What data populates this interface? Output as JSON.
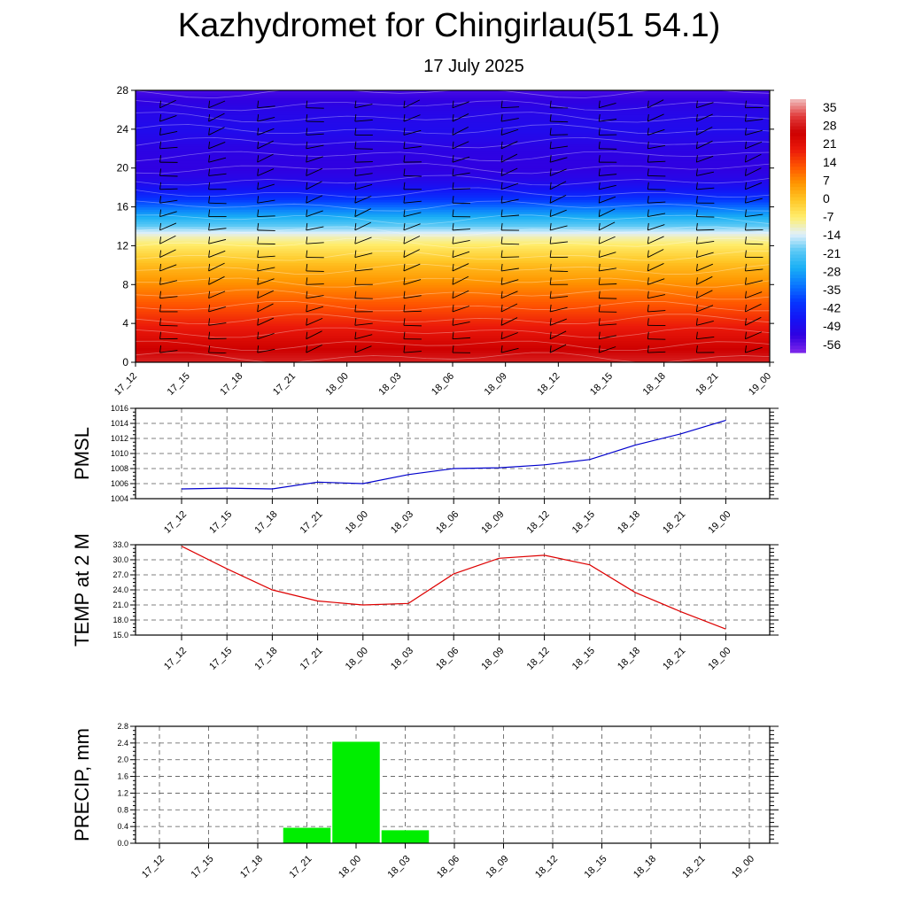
{
  "title": "Kazhydromet for Chingirlau(51 54.1)",
  "subtitle": "17 July 2025",
  "time_labels": [
    "17_12",
    "17_15",
    "17_18",
    "17_21",
    "18_00",
    "18_03",
    "18_06",
    "18_09",
    "18_12",
    "18_15",
    "18_18",
    "18_21",
    "19_00"
  ],
  "colors": {
    "pmsl_line": "#0000cc",
    "temp_line": "#dd0000",
    "precip_bar": "#00ee00",
    "grid": "#555555"
  },
  "chart_data": [
    {
      "type": "heatmap",
      "name": "temperature-cross-section",
      "y_ticks": [
        0,
        4,
        8,
        12,
        16,
        20,
        24,
        28
      ],
      "ylim": [
        0,
        28
      ],
      "colorbar_labels": [
        "35",
        "28",
        "21",
        "14",
        "7",
        "0",
        "-7",
        "-14",
        "-21",
        "-28",
        "-35",
        "-42",
        "-49",
        "-56"
      ],
      "colorbar_range": [
        -63,
        42
      ],
      "x": [
        "17_12",
        "17_15",
        "17_18",
        "17_21",
        "18_00",
        "18_03",
        "18_06",
        "18_09",
        "18_12",
        "18_15",
        "18_18",
        "18_21",
        "19_00"
      ],
      "profile_y": [
        0,
        2,
        4,
        6,
        8,
        10,
        12,
        13,
        14,
        15,
        16,
        17,
        18,
        19,
        20,
        22,
        24,
        26,
        28
      ],
      "profile_t": [
        32,
        26,
        20,
        14,
        8,
        2,
        -6,
        -11,
        -20,
        -28,
        -36,
        -44,
        -50,
        -54,
        -56,
        -55,
        -52,
        -54,
        -58
      ]
    },
    {
      "type": "line",
      "name": "pmsl",
      "ylabel": "PMSL",
      "y_ticks": [
        "1004",
        "1006",
        "1008",
        "1010",
        "1012",
        "1014",
        "1016"
      ],
      "ylim": [
        1004,
        1016
      ],
      "categories": [
        "17_12",
        "17_15",
        "17_18",
        "17_21",
        "18_00",
        "18_03",
        "18_06",
        "18_09",
        "18_12",
        "18_15",
        "18_18",
        "18_21",
        "19_00"
      ],
      "values": [
        1005.3,
        1005.4,
        1005.3,
        1006.2,
        1006.0,
        1007.2,
        1008.0,
        1008.1,
        1008.5,
        1009.2,
        1011.1,
        1012.6,
        1014.4
      ]
    },
    {
      "type": "line",
      "name": "temp-2m",
      "ylabel": "TEMP at 2 M",
      "y_ticks": [
        "15.0",
        "18.0",
        "21.0",
        "24.0",
        "27.0",
        "30.0",
        "33.0"
      ],
      "ylim": [
        15,
        33
      ],
      "categories": [
        "17_12",
        "17_15",
        "17_18",
        "17_21",
        "18_00",
        "18_03",
        "18_06",
        "18_09",
        "18_12",
        "18_15",
        "18_18",
        "18_21",
        "19_00"
      ],
      "values": [
        32.7,
        28.2,
        24.0,
        21.8,
        21.0,
        21.3,
        27.2,
        30.3,
        30.9,
        29.0,
        23.5,
        19.7,
        16.2
      ]
    },
    {
      "type": "bar",
      "name": "precip",
      "ylabel": "PRECIP, mm",
      "y_ticks": [
        "0.0",
        "0.4",
        "0.8",
        "1.2",
        "1.6",
        "2.0",
        "2.4",
        "2.8"
      ],
      "ylim": [
        0,
        2.8
      ],
      "categories": [
        "17_12",
        "17_15",
        "17_18",
        "17_21",
        "18_00",
        "18_03",
        "18_06",
        "18_09",
        "18_12",
        "18_15",
        "18_18",
        "18_21",
        "19_00"
      ],
      "values": [
        0,
        0,
        0,
        0.37,
        2.43,
        0.31,
        0,
        0,
        0,
        0,
        0,
        0,
        0
      ]
    }
  ]
}
